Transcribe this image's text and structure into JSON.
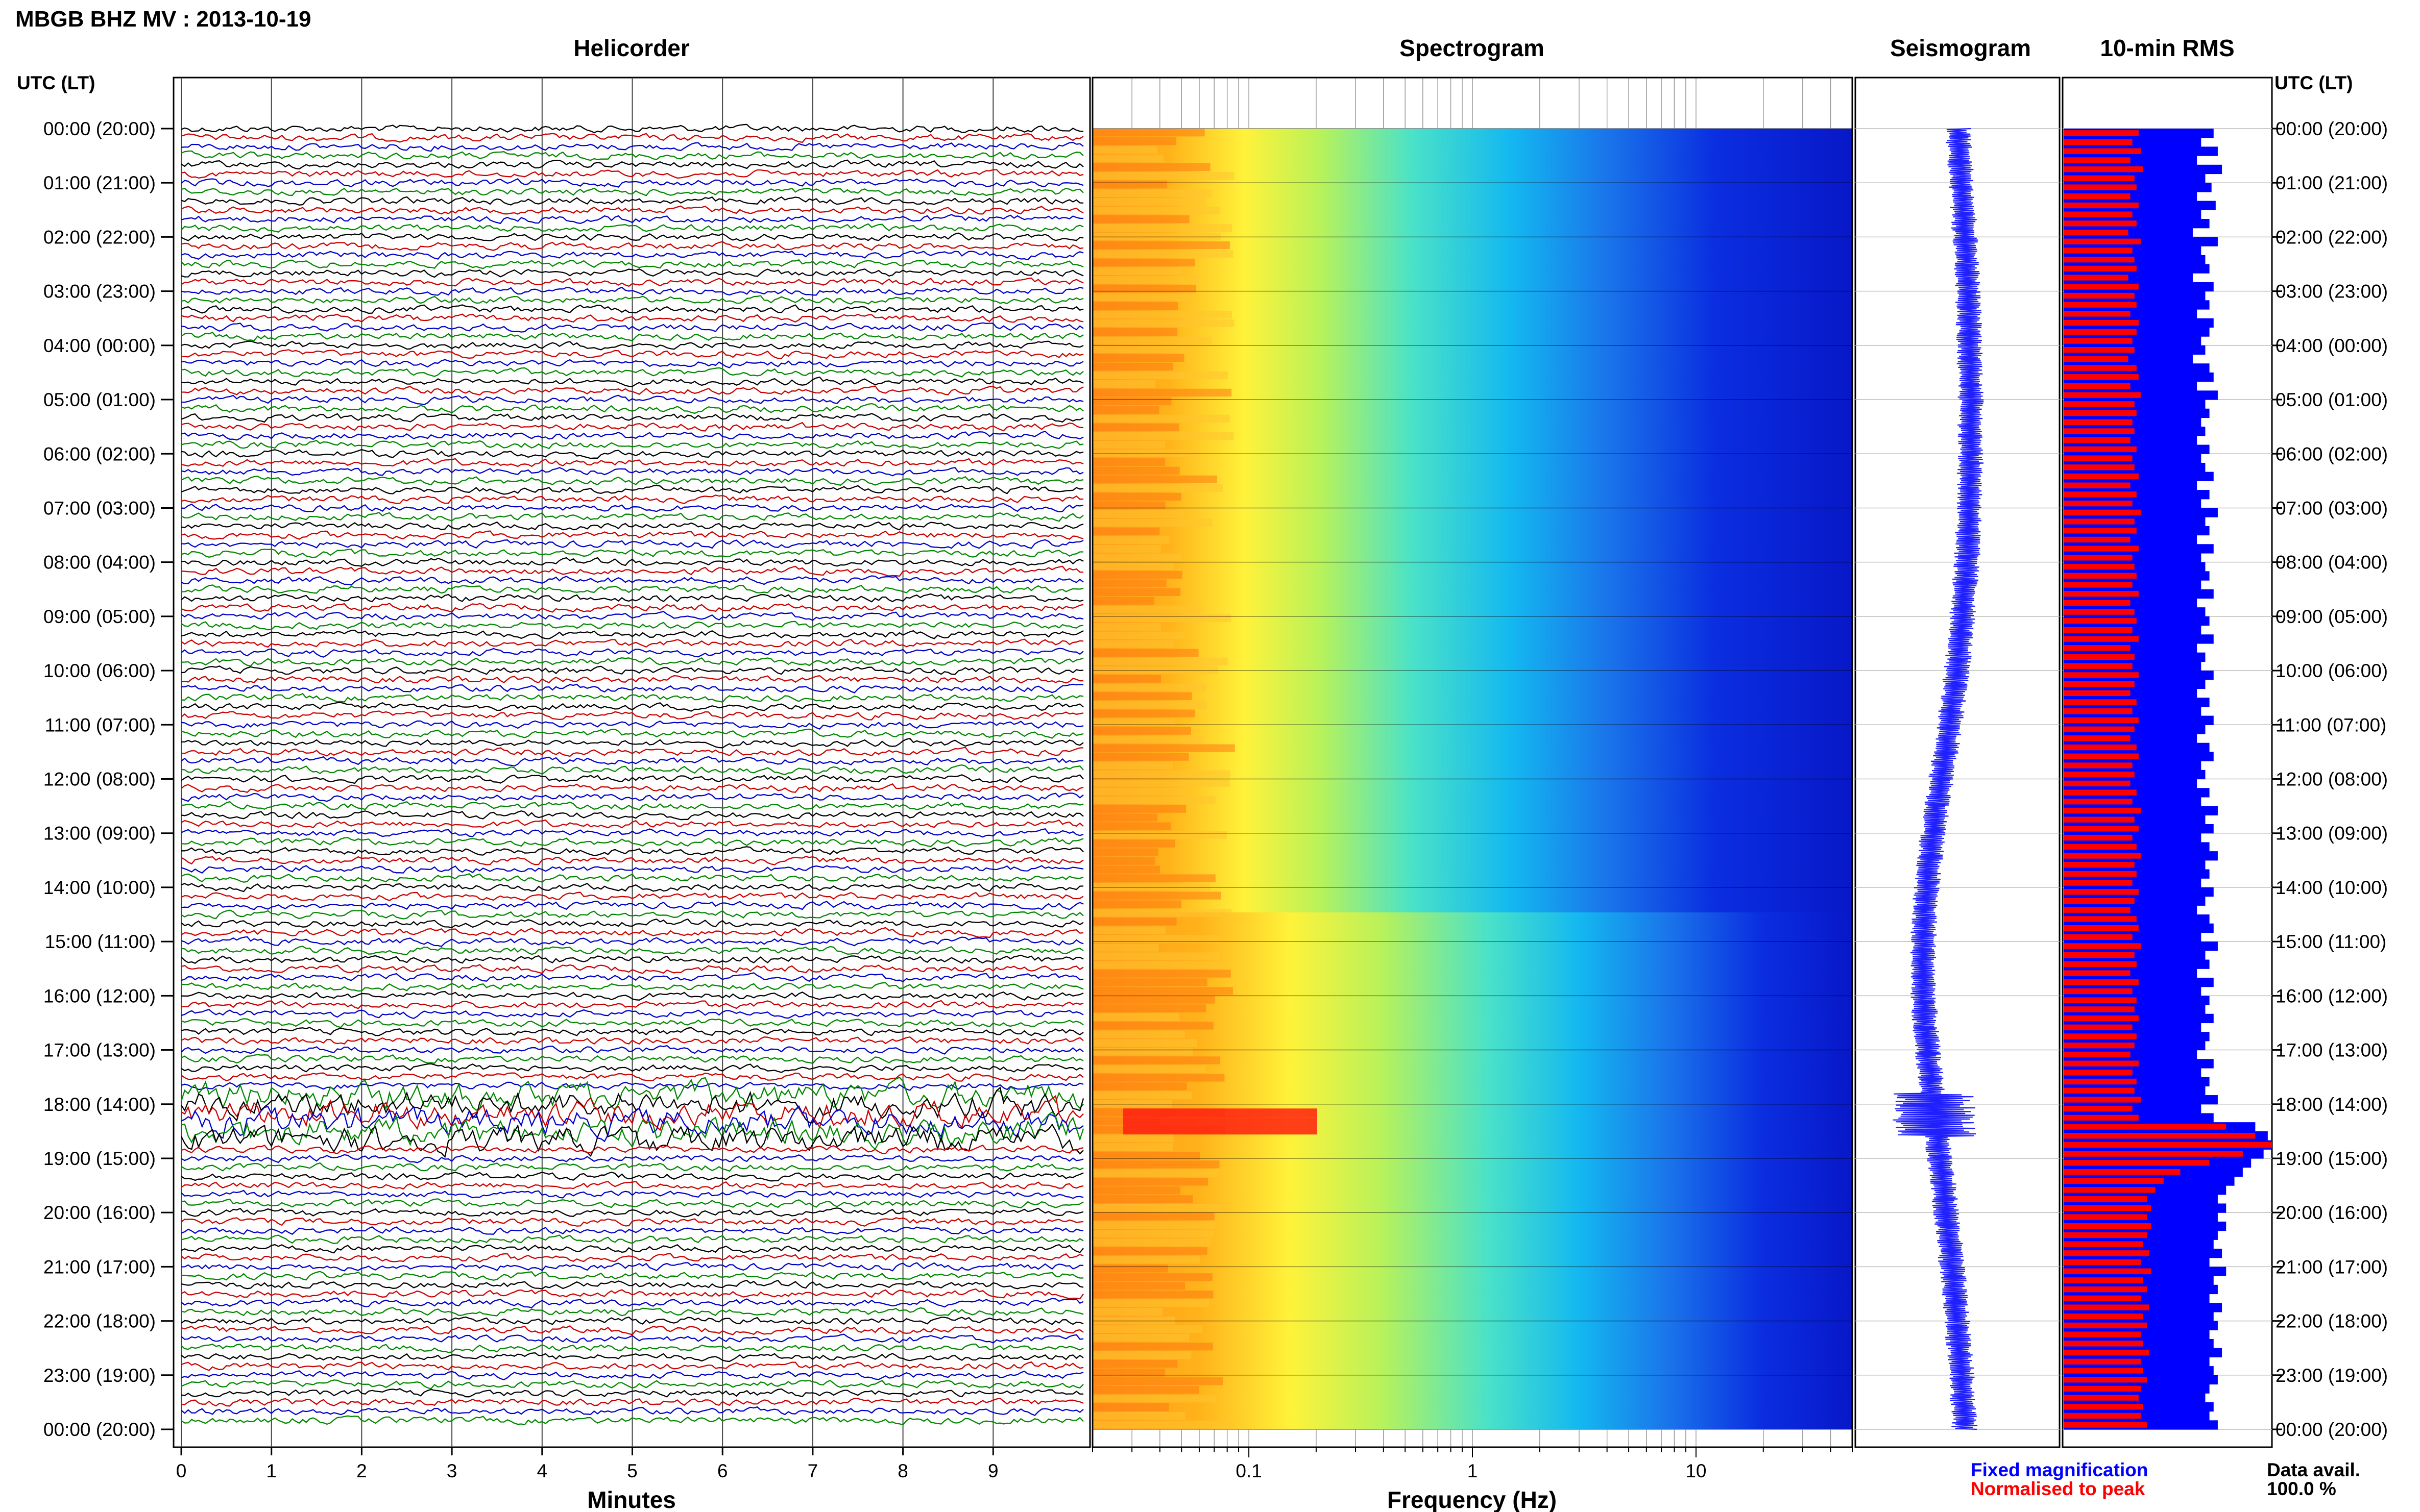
{
  "header": {
    "title": "MBGB BHZ MV : 2013-10-19"
  },
  "panels": {
    "helicorder": "Helicorder",
    "spectrogram": "Spectrogram",
    "seismogram": "Seismogram",
    "rms": "10-min RMS"
  },
  "axis": {
    "left_header": "UTC (LT)",
    "right_header": "UTC (LT)",
    "helicorder_xlabel": "Minutes",
    "spectrogram_xlabel": "Frequency (Hz)"
  },
  "legend": {
    "fixed": "Fixed magnification",
    "normalised": "Normalised to peak",
    "fixed_color": "#0000ff",
    "normalised_color": "#ff0000"
  },
  "availability": {
    "label": "Data avail.",
    "value": "100.0 %"
  },
  "chart_data": {
    "type": "helicorder-spectrogram",
    "time_labels": [
      "00:00 (20:00)",
      "01:00 (21:00)",
      "02:00 (22:00)",
      "03:00 (23:00)",
      "04:00 (00:00)",
      "05:00 (01:00)",
      "06:00 (02:00)",
      "07:00 (03:00)",
      "08:00 (04:00)",
      "09:00 (05:00)",
      "10:00 (06:00)",
      "11:00 (07:00)",
      "12:00 (08:00)",
      "13:00 (09:00)",
      "14:00 (10:00)",
      "15:00 (11:00)",
      "16:00 (12:00)",
      "17:00 (13:00)",
      "18:00 (14:00)",
      "19:00 (15:00)",
      "20:00 (16:00)",
      "21:00 (17:00)",
      "22:00 (18:00)",
      "23:00 (19:00)",
      "00:00 (20:00)"
    ],
    "helicorder": {
      "x_ticks": [
        "0",
        "1",
        "2",
        "3",
        "4",
        "5",
        "6",
        "7",
        "8",
        "9"
      ],
      "xlim": [
        0,
        10
      ],
      "trace_colors": [
        "#000000",
        "#cc0000",
        "#0000cc",
        "#008800"
      ],
      "event_hour": 18.2
    },
    "spectrogram": {
      "x_ticks": [
        "0.1",
        "1",
        "10"
      ],
      "xlim": [
        0.02,
        50
      ],
      "scale": "log"
    },
    "rms": {
      "fixed_color": "#0000ff",
      "normalised_color": "#ff0000",
      "fixed_values": [
        0.72,
        0.66,
        0.74,
        0.64,
        0.76,
        0.68,
        0.71,
        0.64,
        0.73,
        0.66,
        0.7,
        0.62,
        0.74,
        0.66,
        0.68,
        0.7,
        0.62,
        0.72,
        0.68,
        0.7,
        0.64,
        0.72,
        0.7,
        0.66,
        0.68,
        0.62,
        0.7,
        0.72,
        0.64,
        0.74,
        0.68,
        0.7,
        0.66,
        0.68,
        0.64,
        0.7,
        0.66,
        0.68,
        0.72,
        0.64,
        0.7,
        0.66,
        0.74,
        0.68,
        0.7,
        0.64,
        0.72,
        0.66,
        0.68,
        0.7,
        0.66,
        0.72,
        0.64,
        0.68,
        0.7,
        0.66,
        0.72,
        0.64,
        0.68,
        0.66,
        0.72,
        0.68,
        0.64,
        0.7,
        0.66,
        0.72,
        0.68,
        0.64,
        0.7,
        0.72,
        0.66,
        0.68,
        0.64,
        0.7,
        0.66,
        0.74,
        0.68,
        0.72,
        0.66,
        0.7,
        0.74,
        0.68,
        0.7,
        0.66,
        0.72,
        0.68,
        0.64,
        0.7,
        0.72,
        0.66,
        0.74,
        0.68,
        0.7,
        0.64,
        0.72,
        0.66,
        0.7,
        0.68,
        0.72,
        0.66,
        0.7,
        0.68,
        0.64,
        0.72,
        0.66,
        0.7,
        0.68,
        0.74,
        0.66,
        0.72,
        0.92,
        0.98,
        1.0,
        0.96,
        0.9,
        0.86,
        0.82,
        0.78,
        0.74,
        0.78,
        0.74,
        0.78,
        0.74,
        0.72,
        0.76,
        0.7,
        0.78,
        0.72,
        0.74,
        0.7,
        0.76,
        0.72,
        0.74,
        0.7,
        0.72,
        0.76,
        0.7,
        0.72,
        0.74,
        0.7,
        0.68,
        0.72,
        0.7,
        0.74
      ],
      "normalised_values": [
        0.36,
        0.33,
        0.37,
        0.32,
        0.38,
        0.34,
        0.35,
        0.32,
        0.36,
        0.33,
        0.35,
        0.31,
        0.37,
        0.33,
        0.34,
        0.35,
        0.31,
        0.36,
        0.34,
        0.35,
        0.32,
        0.36,
        0.35,
        0.33,
        0.34,
        0.31,
        0.35,
        0.36,
        0.32,
        0.37,
        0.34,
        0.35,
        0.33,
        0.34,
        0.32,
        0.35,
        0.33,
        0.34,
        0.36,
        0.32,
        0.35,
        0.33,
        0.37,
        0.34,
        0.35,
        0.32,
        0.36,
        0.33,
        0.34,
        0.35,
        0.33,
        0.36,
        0.32,
        0.34,
        0.35,
        0.33,
        0.36,
        0.32,
        0.34,
        0.33,
        0.36,
        0.34,
        0.32,
        0.35,
        0.33,
        0.36,
        0.34,
        0.32,
        0.35,
        0.36,
        0.33,
        0.34,
        0.32,
        0.35,
        0.33,
        0.37,
        0.34,
        0.36,
        0.33,
        0.35,
        0.37,
        0.34,
        0.35,
        0.33,
        0.36,
        0.34,
        0.32,
        0.35,
        0.36,
        0.33,
        0.37,
        0.34,
        0.35,
        0.32,
        0.36,
        0.33,
        0.35,
        0.34,
        0.36,
        0.33,
        0.35,
        0.34,
        0.32,
        0.36,
        0.33,
        0.35,
        0.34,
        0.37,
        0.33,
        0.36,
        0.78,
        0.92,
        1.0,
        0.86,
        0.7,
        0.56,
        0.48,
        0.44,
        0.4,
        0.42,
        0.4,
        0.42,
        0.4,
        0.38,
        0.41,
        0.37,
        0.42,
        0.38,
        0.4,
        0.37,
        0.41,
        0.38,
        0.4,
        0.37,
        0.38,
        0.41,
        0.37,
        0.38,
        0.4,
        0.37,
        0.36,
        0.38,
        0.37,
        0.4
      ]
    }
  }
}
